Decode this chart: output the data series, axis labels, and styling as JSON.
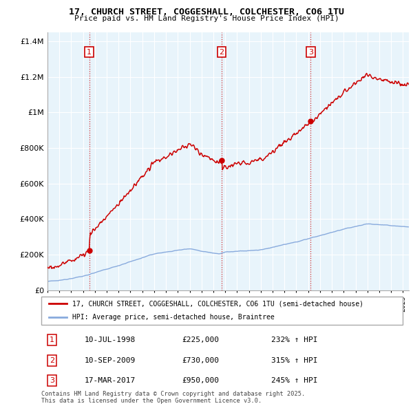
{
  "title": "17, CHURCH STREET, COGGESHALL, COLCHESTER, CO6 1TU",
  "subtitle": "Price paid vs. HM Land Registry's House Price Index (HPI)",
  "legend_label1": "17, CHURCH STREET, COGGESHALL, COLCHESTER, CO6 1TU (semi-detached house)",
  "legend_label2": "HPI: Average price, semi-detached house, Braintree",
  "footnote": "Contains HM Land Registry data © Crown copyright and database right 2025.\nThis data is licensed under the Open Government Licence v3.0.",
  "sale_points": [
    {
      "num": 1,
      "date": "10-JUL-1998",
      "price": "£225,000",
      "hpi": "232% ↑ HPI",
      "year": 1998.53,
      "value": 225000
    },
    {
      "num": 2,
      "date": "10-SEP-2009",
      "price": "£730,000",
      "hpi": "315% ↑ HPI",
      "year": 2009.7,
      "value": 730000
    },
    {
      "num": 3,
      "date": "17-MAR-2017",
      "price": "£950,000",
      "hpi": "245% ↑ HPI",
      "year": 2017.21,
      "value": 950000
    }
  ],
  "ylim": [
    0,
    1450000
  ],
  "xlim_start": 1995.0,
  "xlim_end": 2025.5,
  "property_color": "#cc0000",
  "hpi_color": "#88aadd",
  "grid_color": "#d8e8f0",
  "background_color": "#eaf4fb"
}
